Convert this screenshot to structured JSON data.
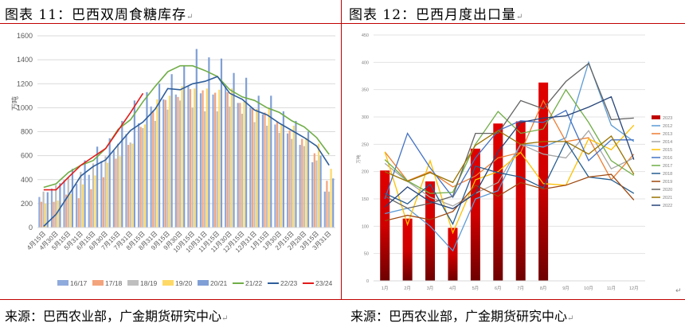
{
  "left": {
    "title": "图表 11：巴西双周食糖库存",
    "source": "来源：巴西农业部，广金期货研究中心"
  },
  "right": {
    "title": "图表 12：巴西月度出口量",
    "source": "来源：巴西农业部，广金期货研究中心"
  },
  "chart_data": [
    {
      "type": "bar",
      "title": "巴西双周食糖库存",
      "ylabel": "万吨",
      "xlabel": "",
      "ylim": [
        0,
        1600
      ],
      "yticks": [
        0,
        200,
        400,
        600,
        800,
        1000,
        1200,
        1400,
        1600
      ],
      "grid": true,
      "legend_position": "bottom",
      "categories": [
        "4月15日",
        "4月30日",
        "5月15日",
        "5月31日",
        "6月15日",
        "6月30日",
        "7月15日",
        "7月31日",
        "8月15日",
        "8月31日",
        "9月15日",
        "9月30日",
        "10月15日",
        "10月31日",
        "11月15日",
        "11月30日",
        "12月15日",
        "12月31日",
        "1月15日",
        "1月30日",
        "2月15日",
        "2月28日",
        "3月15日",
        "3月31日"
      ],
      "series": [
        {
          "name": "16/17",
          "kind": "bar",
          "color": "#8faadc",
          "values": [
            255,
            325,
            395,
            365,
            440,
            555,
            640,
            780,
            870,
            1010,
            1070,
            1110,
            1180,
            1120,
            1110,
            1180,
            1040,
            1000,
            945,
            860,
            785,
            690,
            545,
            300
          ]
        },
        {
          "name": "17/18",
          "kind": "bar",
          "color": "#f4a47c",
          "values": [
            215,
            215,
            275,
            245,
            320,
            420,
            575,
            690,
            840,
            975,
            1065,
            1090,
            1155,
            1145,
            1125,
            1130,
            1040,
            1000,
            960,
            885,
            810,
            740,
            620,
            390
          ]
        },
        {
          "name": "18/19",
          "kind": "bar",
          "color": "#bfbfbf",
          "values": [
            300,
            355,
            420,
            465,
            535,
            595,
            700,
            710,
            830,
            890,
            985,
            1060,
            1000,
            970,
            970,
            1010,
            950,
            880,
            850,
            790,
            740,
            680,
            560,
            300
          ]
        },
        {
          "name": "19/20",
          "kind": "bar",
          "color": "#ffd966",
          "values": [
            200,
            225,
            280,
            360,
            435,
            540,
            595,
            700,
            860,
            1070,
            1100,
            1180,
            1160,
            1160,
            1150,
            1160,
            1050,
            990,
            990,
            860,
            850,
            750,
            700,
            490
          ]
        },
        {
          "name": "20/21",
          "kind": "bar",
          "color": "#7f9fd6",
          "values": [
            295,
            370,
            490,
            560,
            675,
            745,
            890,
            1060,
            1130,
            1200,
            1280,
            1350,
            1490,
            1420,
            1410,
            1290,
            1250,
            1100,
            1100,
            970,
            890,
            800,
            600,
            410
          ]
        },
        {
          "name": "21/22",
          "kind": "line",
          "color": "#70ad47",
          "values": [
            335,
            365,
            460,
            520,
            560,
            660,
            820,
            900,
            1050,
            1180,
            1300,
            1350,
            1350,
            1310,
            1260,
            1150,
            1090,
            1060,
            1000,
            960,
            890,
            840,
            750,
            610
          ]
        },
        {
          "name": "22/23",
          "kind": "line",
          "color": "#2e5e9a",
          "values": [
            10,
            110,
            270,
            430,
            510,
            565,
            690,
            810,
            880,
            990,
            1160,
            1150,
            1200,
            1220,
            1260,
            1120,
            1070,
            980,
            940,
            870,
            810,
            750,
            680,
            520
          ]
        },
        {
          "name": "23/24",
          "kind": "line",
          "color": "#e31b1b",
          "values": [
            315,
            315,
            420,
            520,
            590,
            660,
            810,
            960,
            1120,
            null,
            null,
            null,
            null,
            null,
            null,
            null,
            null,
            null,
            null,
            null,
            null,
            null,
            null,
            null
          ]
        }
      ]
    },
    {
      "type": "bar",
      "title": "巴西月度出口量",
      "ylabel": "万吨",
      "xlabel": "",
      "ylim": [
        0,
        450
      ],
      "yticks": [
        0,
        50,
        100,
        150,
        200,
        250,
        300,
        350,
        400,
        450
      ],
      "grid": true,
      "legend_position": "right",
      "categories": [
        "1月",
        "2月",
        "3月",
        "4月",
        "5月",
        "6月",
        "7月",
        "8月",
        "9月",
        "10月",
        "11月",
        "12月"
      ],
      "series": [
        {
          "name": "2023",
          "kind": "bar",
          "color": "#c00000",
          "values": [
            202,
            114,
            182,
            97,
            242,
            288,
            292,
            363,
            null,
            null,
            null,
            null
          ]
        },
        {
          "name": "2012",
          "kind": "line",
          "color": "#5b9bd5",
          "values": [
            123,
            133,
            100,
            55,
            150,
            165,
            250,
            245,
            262,
            400,
            285,
            255
          ]
        },
        {
          "name": "2013",
          "kind": "line",
          "color": "#ed7d31",
          "values": [
            236,
            183,
            200,
            172,
            192,
            225,
            235,
            330,
            255,
            262,
            185,
            232
          ]
        },
        {
          "name": "2014",
          "kind": "line",
          "color": "#a5a5a5",
          "values": [
            215,
            182,
            153,
            137,
            160,
            180,
            250,
            232,
            225,
            275,
            205,
            225
          ]
        },
        {
          "name": "2015",
          "kind": "line",
          "color": "#ffc000",
          "values": [
            236,
            103,
            220,
            88,
            185,
            200,
            235,
            178,
            175,
            260,
            240,
            285
          ]
        },
        {
          "name": "2016",
          "kind": "line",
          "color": "#4472c4",
          "values": [
            150,
            270,
            207,
            153,
            225,
            275,
            293,
            290,
            312,
            220,
            258,
            258
          ]
        },
        {
          "name": "2017",
          "kind": "line",
          "color": "#70ad47",
          "values": [
            222,
            183,
            160,
            162,
            250,
            310,
            270,
            278,
            350,
            290,
            220,
            193
          ]
        },
        {
          "name": "2018",
          "kind": "line",
          "color": "#255e91",
          "values": [
            160,
            141,
            177,
            104,
            210,
            198,
            190,
            170,
            255,
            190,
            185,
            160
          ]
        },
        {
          "name": "2019",
          "kind": "line",
          "color": "#9e480e",
          "values": [
            110,
            120,
            112,
            127,
            175,
            155,
            180,
            168,
            175,
            190,
            195,
            148
          ]
        },
        {
          "name": "2020",
          "kind": "line",
          "color": "#636363",
          "values": [
            155,
            133,
            142,
            155,
            270,
            270,
            330,
            315,
            365,
            398,
            295,
            298
          ]
        },
        {
          "name": "2021",
          "kind": "line",
          "color": "#997300",
          "values": [
            200,
            182,
            198,
            180,
            248,
            275,
            250,
            255,
            255,
            232,
            265,
            195
          ]
        },
        {
          "name": "2022",
          "kind": "line",
          "color": "#264478",
          "values": [
            135,
            172,
            145,
            132,
            160,
            236,
            290,
            298,
            302,
            318,
            337,
            222
          ]
        }
      ]
    }
  ]
}
